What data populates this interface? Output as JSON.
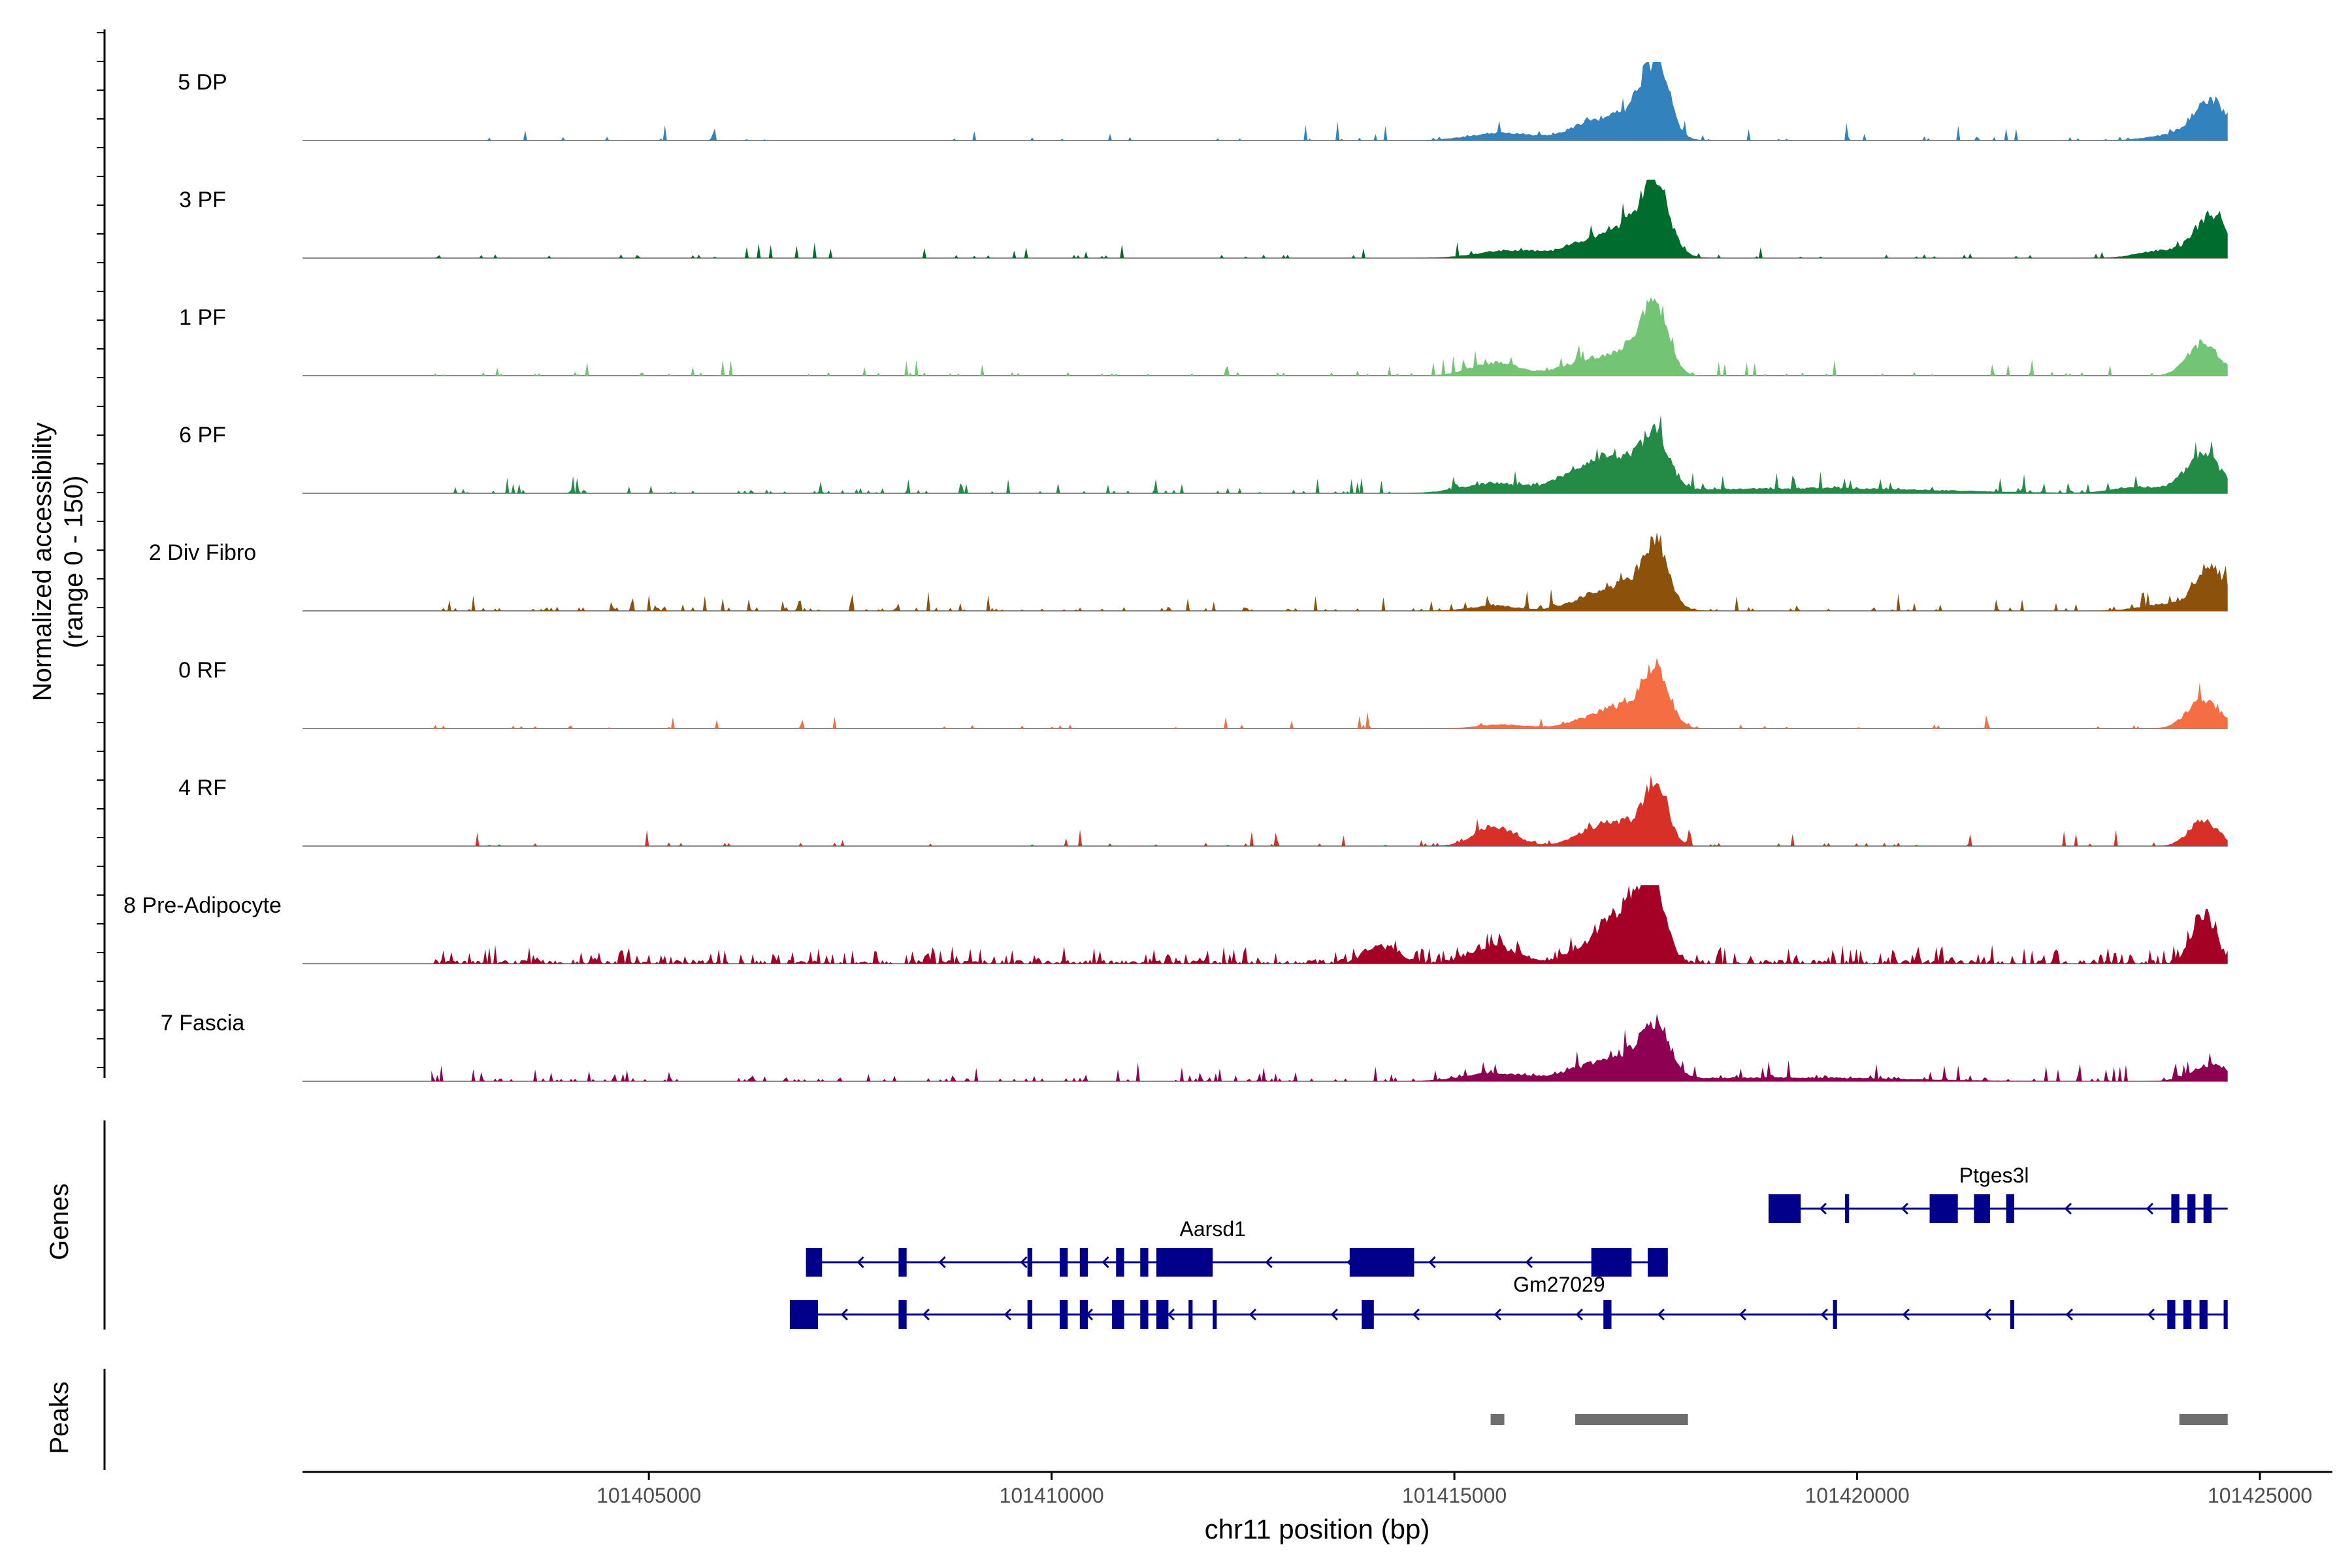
{
  "chart_data": {
    "type": "area",
    "ylabel_line1": "Normalized accessibility",
    "ylabel_line2": "(range 0 - 150)",
    "yrange": [
      0,
      150
    ],
    "xlabel": "chr11 position (bp)",
    "xlim": [
      101400700,
      101425900
    ],
    "data_end": 101424600,
    "x_ticks": [
      101405000,
      101410000,
      101415000,
      101420000,
      101425000
    ],
    "x_tick_labels": [
      "101405000",
      "101410000",
      "101415000",
      "101420000",
      "101425000"
    ],
    "tracks": [
      {
        "name": "5 DP",
        "color": "#3182bd",
        "peaks": [
          [
            101417500,
            95,
            160
          ],
          [
            101417250,
            45,
            280
          ],
          [
            101416650,
            25,
            250
          ],
          [
            101424400,
            60,
            220
          ],
          [
            101415600,
            12,
            400
          ],
          [
            101423900,
            8,
            300
          ]
        ],
        "noise": 0.02
      },
      {
        "name": "3 PF",
        "color": "#006d2c",
        "peaks": [
          [
            101417500,
            90,
            160
          ],
          [
            101417250,
            45,
            300
          ],
          [
            101416700,
            25,
            300
          ],
          [
            101424400,
            65,
            200
          ],
          [
            101415700,
            12,
            400
          ],
          [
            101423800,
            12,
            300
          ]
        ],
        "noise": 0.03
      },
      {
        "name": "1 PF",
        "color": "#74c476",
        "peaks": [
          [
            101417500,
            95,
            150
          ],
          [
            101417200,
            40,
            280
          ],
          [
            101416600,
            20,
            300
          ],
          [
            101424300,
            50,
            200
          ],
          [
            101415500,
            20,
            300
          ]
        ],
        "noise": 0.04
      },
      {
        "name": "6 PF",
        "color": "#238b45",
        "peaks": [
          [
            101417500,
            65,
            160
          ],
          [
            101417100,
            50,
            350
          ],
          [
            101416550,
            25,
            300
          ],
          [
            101424300,
            60,
            220
          ],
          [
            101415500,
            15,
            400
          ],
          [
            101419500,
            8,
            1500
          ],
          [
            101423500,
            10,
            300
          ]
        ],
        "noise": 0.06
      },
      {
        "name": "2 Div Fibro",
        "color": "#8c510a",
        "peaks": [
          [
            101417500,
            80,
            160
          ],
          [
            101417200,
            35,
            300
          ],
          [
            101416700,
            18,
            300
          ],
          [
            101424400,
            65,
            200
          ],
          [
            101415500,
            8,
            300
          ],
          [
            101423800,
            10,
            300
          ]
        ],
        "noise": 0.06
      },
      {
        "name": "0 RF",
        "color": "#f46d43",
        "peaks": [
          [
            101417500,
            80,
            160
          ],
          [
            101417150,
            30,
            300
          ],
          [
            101416700,
            12,
            300
          ],
          [
            101424300,
            45,
            200
          ],
          [
            101415600,
            6,
            300
          ]
        ],
        "noise": 0.02
      },
      {
        "name": "4 RF",
        "color": "#d73027",
        "peaks": [
          [
            101417500,
            90,
            150
          ],
          [
            101417100,
            30,
            250
          ],
          [
            101416700,
            20,
            250
          ],
          [
            101415500,
            30,
            250
          ],
          [
            101424300,
            40,
            180
          ]
        ],
        "noise": 0.03
      },
      {
        "name": "8 Pre-Adipocyte",
        "color": "#a50026",
        "peaks": [
          [
            101417450,
            115,
            160
          ],
          [
            101417150,
            60,
            250
          ],
          [
            101416800,
            30,
            300
          ],
          [
            101424300,
            75,
            150
          ],
          [
            101415500,
            25,
            300
          ],
          [
            101414100,
            25,
            200
          ]
        ],
        "noise": 0.2
      },
      {
        "name": "7 Fascia",
        "color": "#8e0152",
        "peaks": [
          [
            101417500,
            75,
            180
          ],
          [
            101417100,
            30,
            300
          ],
          [
            101416600,
            15,
            300
          ],
          [
            101424400,
            25,
            250
          ],
          [
            101415500,
            12,
            400
          ],
          [
            101419000,
            6,
            1500
          ]
        ],
        "noise": 0.06
      }
    ],
    "genes_label": "Genes",
    "peaks_label": "Peaks",
    "genes": [
      {
        "name": "Ptges3l",
        "row": 0,
        "start": 101418900,
        "end": 101424600,
        "label_x": 101421700,
        "label_above": true,
        "exons": [
          [
            101418900,
            101419300
          ],
          [
            101419850,
            101419900
          ],
          [
            101420900,
            101421250
          ],
          [
            101421450,
            101421650
          ],
          [
            101421850,
            101421950
          ],
          [
            101423900,
            101424000
          ],
          [
            101424100,
            101424200
          ],
          [
            101424300,
            101424400
          ]
        ]
      },
      {
        "name": "Aarsd1",
        "row": 1,
        "start": 101406950,
        "end": 101415250,
        "label_x": 101412000,
        "label_above": true,
        "exons": [
          [
            101406950,
            101407150
          ],
          [
            101408100,
            101408200
          ],
          [
            101409700,
            101409760
          ],
          [
            101410100,
            101410200
          ],
          [
            101410350,
            101410450
          ],
          [
            101410800,
            101410900
          ],
          [
            101411100,
            101411200
          ],
          [
            101411300,
            101412000
          ],
          [
            101413700,
            101414500
          ]
        ]
      },
      {
        "name": "Gm27029",
        "row": 1,
        "start": 101415250,
        "end": 101417650,
        "label_x": 101416300,
        "label_above": false,
        "exons": [
          [
            101416700,
            101417200
          ],
          [
            101417400,
            101417650
          ]
        ]
      },
      {
        "name": "",
        "row": 2,
        "start": 101406750,
        "end": 101424600,
        "label_x": 0,
        "label_above": true,
        "exons": [
          [
            101406750,
            101407100
          ],
          [
            101408100,
            101408200
          ],
          [
            101409700,
            101409760
          ],
          [
            101410100,
            101410200
          ],
          [
            101410350,
            101410450
          ],
          [
            101410750,
            101410900
          ],
          [
            101411100,
            101411200
          ],
          [
            101411300,
            101411450
          ],
          [
            101411700,
            101411750
          ],
          [
            101412000,
            101412050
          ],
          [
            101413850,
            101414000
          ],
          [
            101416850,
            101416950
          ],
          [
            101419700,
            101419750
          ],
          [
            101421900,
            101421950
          ],
          [
            101423850,
            101423950
          ],
          [
            101424050,
            101424150
          ],
          [
            101424250,
            101424350
          ],
          [
            101424550,
            101424600
          ]
        ]
      }
    ],
    "peak_regions": [
      [
        101415450,
        101415620
      ],
      [
        101416500,
        101417900
      ],
      [
        101424000,
        101424600
      ]
    ]
  }
}
